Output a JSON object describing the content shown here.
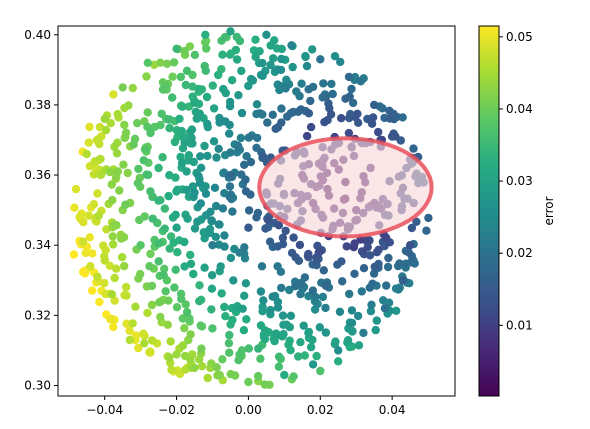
{
  "chart_data": {
    "type": "scatter",
    "title": "",
    "xlabel": "",
    "ylabel": "",
    "xlim": [
      -0.053,
      0.0575
    ],
    "ylim": [
      0.297,
      0.4025
    ],
    "x_ticks": [
      -0.04,
      -0.02,
      0.0,
      0.02,
      0.04
    ],
    "x_tick_labels": [
      "−0.04",
      "−0.02",
      "0.00",
      "0.02",
      "0.04"
    ],
    "y_ticks": [
      0.3,
      0.32,
      0.34,
      0.36,
      0.38,
      0.4
    ],
    "y_tick_labels": [
      "0.30",
      "0.32",
      "0.34",
      "0.36",
      "0.38",
      "0.40"
    ],
    "grid": false,
    "colormap": "viridis",
    "colorbar": {
      "label": "error",
      "range": [
        0.0002,
        0.0515
      ],
      "ticks": [
        0.01,
        0.02,
        0.03,
        0.04,
        0.05
      ],
      "tick_labels": [
        "0.01",
        "0.02",
        "0.03",
        "0.04",
        "0.05"
      ]
    },
    "points_description": "Approximately 900 points filling a disk centered near (0.0, 0.35) with radius about 0.05; color (error) grows with distance from (0.025, 0.355).",
    "points": [
      {
        "x": -0.048,
        "y": 0.356,
        "error": 0.049
      },
      {
        "x": -0.047,
        "y": 0.348,
        "error": 0.049
      },
      {
        "x": -0.044,
        "y": 0.334,
        "error": 0.048
      },
      {
        "x": -0.046,
        "y": 0.341,
        "error": 0.048
      },
      {
        "x": -0.042,
        "y": 0.331,
        "error": 0.047
      },
      {
        "x": -0.038,
        "y": 0.326,
        "error": 0.045
      },
      {
        "x": -0.033,
        "y": 0.313,
        "error": 0.046
      },
      {
        "x": -0.029,
        "y": 0.312,
        "error": 0.045
      },
      {
        "x": -0.022,
        "y": 0.308,
        "error": 0.044
      },
      {
        "x": -0.015,
        "y": 0.305,
        "error": 0.043
      },
      {
        "x": -0.008,
        "y": 0.303,
        "error": 0.042
      },
      {
        "x": 0.0,
        "y": 0.301,
        "error": 0.04
      },
      {
        "x": -0.045,
        "y": 0.366,
        "error": 0.046
      },
      {
        "x": -0.04,
        "y": 0.376,
        "error": 0.044
      },
      {
        "x": -0.035,
        "y": 0.385,
        "error": 0.041
      },
      {
        "x": -0.028,
        "y": 0.392,
        "error": 0.038
      },
      {
        "x": -0.02,
        "y": 0.396,
        "error": 0.035
      },
      {
        "x": -0.012,
        "y": 0.4,
        "error": 0.033
      },
      {
        "x": -0.005,
        "y": 0.401,
        "error": 0.03
      },
      {
        "x": 0.005,
        "y": 0.4,
        "error": 0.026
      },
      {
        "x": 0.012,
        "y": 0.397,
        "error": 0.023
      },
      {
        "x": 0.02,
        "y": 0.393,
        "error": 0.02
      },
      {
        "x": 0.028,
        "y": 0.388,
        "error": 0.018
      },
      {
        "x": 0.035,
        "y": 0.38,
        "error": 0.016
      },
      {
        "x": 0.04,
        "y": 0.371,
        "error": 0.014
      },
      {
        "x": 0.044,
        "y": 0.362,
        "error": 0.013
      },
      {
        "x": 0.046,
        "y": 0.352,
        "error": 0.012
      },
      {
        "x": 0.045,
        "y": 0.34,
        "error": 0.013
      },
      {
        "x": 0.043,
        "y": 0.33,
        "error": 0.016
      },
      {
        "x": 0.038,
        "y": 0.322,
        "error": 0.019
      },
      {
        "x": 0.032,
        "y": 0.315,
        "error": 0.022
      },
      {
        "x": 0.025,
        "y": 0.31,
        "error": 0.025
      },
      {
        "x": 0.018,
        "y": 0.306,
        "error": 0.028
      },
      {
        "x": 0.01,
        "y": 0.303,
        "error": 0.032
      },
      {
        "x": 0.022,
        "y": 0.356,
        "error": 0.001
      },
      {
        "x": 0.027,
        "y": 0.358,
        "error": 0.001
      },
      {
        "x": 0.018,
        "y": 0.352,
        "error": 0.003
      },
      {
        "x": 0.03,
        "y": 0.35,
        "error": 0.003
      },
      {
        "x": 0.015,
        "y": 0.36,
        "error": 0.005
      },
      {
        "x": 0.034,
        "y": 0.362,
        "error": 0.005
      },
      {
        "x": 0.01,
        "y": 0.348,
        "error": 0.008
      },
      {
        "x": 0.005,
        "y": 0.355,
        "error": 0.01
      },
      {
        "x": 0.0,
        "y": 0.345,
        "error": 0.015
      },
      {
        "x": -0.005,
        "y": 0.36,
        "error": 0.018
      },
      {
        "x": -0.01,
        "y": 0.34,
        "error": 0.022
      },
      {
        "x": -0.015,
        "y": 0.355,
        "error": 0.026
      },
      {
        "x": -0.02,
        "y": 0.345,
        "error": 0.03
      },
      {
        "x": -0.025,
        "y": 0.362,
        "error": 0.034
      },
      {
        "x": -0.03,
        "y": 0.34,
        "error": 0.038
      },
      {
        "x": -0.035,
        "y": 0.35,
        "error": 0.042
      }
    ],
    "annotations": [
      {
        "type": "ellipse-region",
        "description": "Semi-transparent red outlined region around the low-error cluster",
        "center": [
          0.027,
          0.3565
        ],
        "x_half_width": 0.024,
        "y_half_height": 0.014,
        "fill": "#f8d7da",
        "stroke": "#e8505b"
      }
    ]
  }
}
